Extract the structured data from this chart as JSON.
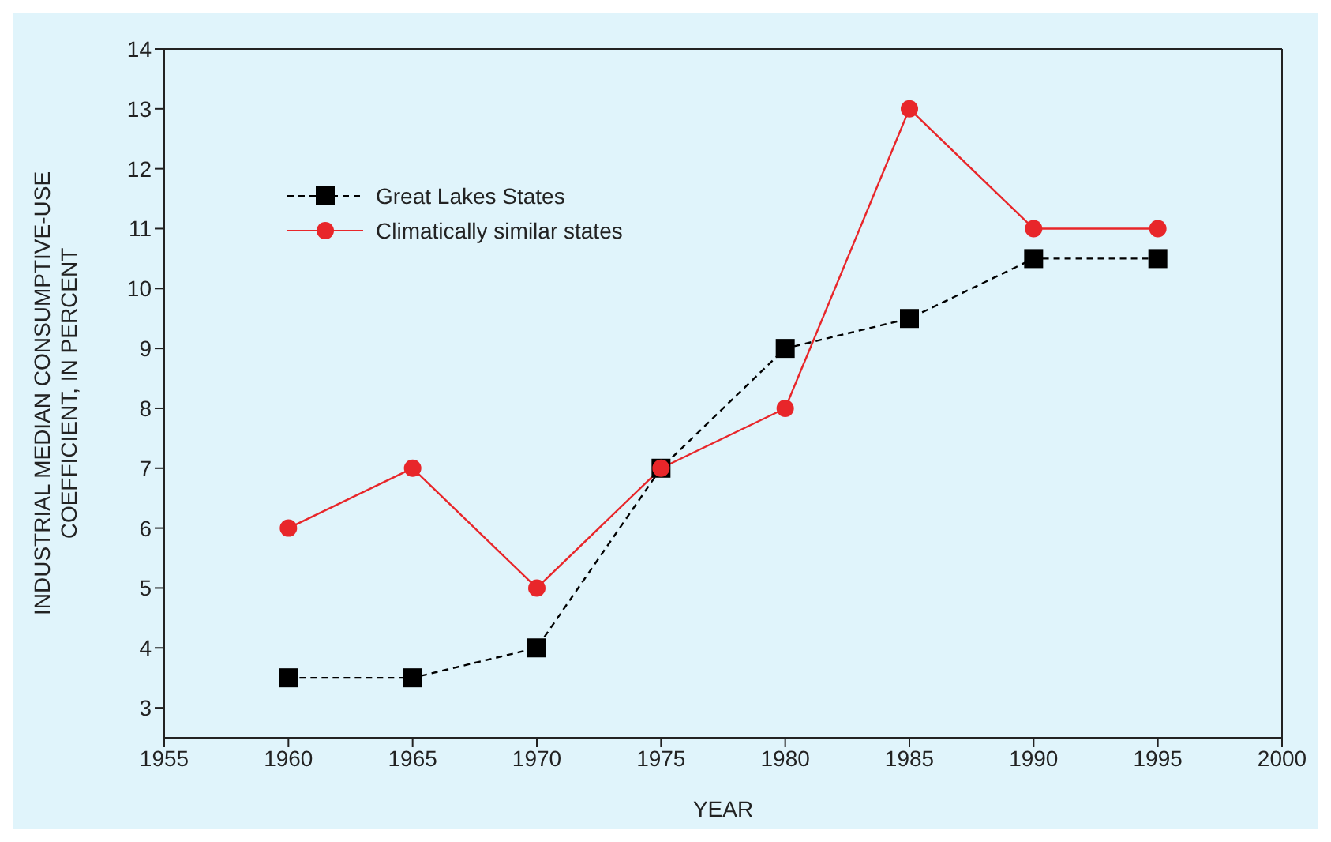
{
  "chart_data": {
    "type": "line",
    "xlabel": "YEAR",
    "ylabel": "INDUSTRIAL MEDIAN CONSUMPTIVE-USE COEFFICIENT, IN PERCENT",
    "x": [
      1960,
      1965,
      1970,
      1975,
      1980,
      1985,
      1990,
      1995
    ],
    "series": [
      {
        "name": "Great Lakes States",
        "color": "#000000",
        "values": [
          3.5,
          3.5,
          4,
          7,
          9,
          9.5,
          10.5,
          10.5
        ],
        "marker": "square",
        "line_style": "dashed"
      },
      {
        "name": "Climatically similar states",
        "color": "#e8262a",
        "values": [
          6,
          7,
          5,
          7,
          8,
          13,
          11,
          11
        ],
        "marker": "circle",
        "line_style": "solid"
      }
    ],
    "xlim": [
      1955,
      2000
    ],
    "xticks": [
      1955,
      1960,
      1965,
      1970,
      1975,
      1980,
      1985,
      1990,
      1995,
      2000
    ],
    "ylim": [
      2.5,
      14
    ],
    "yticks": [
      3,
      4,
      5,
      6,
      7,
      8,
      9,
      10,
      11,
      12,
      13,
      14
    ],
    "grid": false,
    "legend": "top left"
  }
}
